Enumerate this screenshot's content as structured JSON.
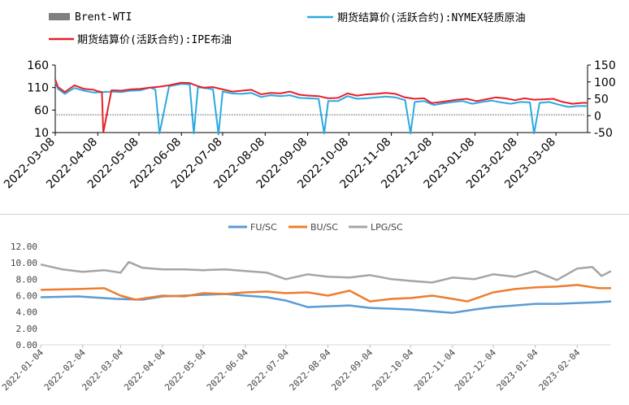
{
  "chart_data": [
    {
      "type": "line",
      "legend": [
        {
          "name": "Brent-WTI",
          "color": "#7f7f7f",
          "kind": "bar"
        },
        {
          "name": "期货结算价(活跃合约):NYMEX轻质原油",
          "color": "#2aa9e0",
          "kind": "line"
        },
        {
          "name": "期货结算价(活跃合约):IPE布油",
          "color": "#e8202a",
          "kind": "line"
        }
      ],
      "left_axis": {
        "range": [
          10,
          160
        ],
        "ticks": [
          "160",
          "110",
          "60",
          "10"
        ]
      },
      "right_axis": {
        "range": [
          -50,
          150
        ],
        "ticks": [
          "150",
          "100",
          "50",
          "0",
          "-50"
        ]
      },
      "x_labels": [
        "2022-03-08",
        "2022-04-08",
        "2022-05-08",
        "2022-06-08",
        "2022-07-08",
        "2022-08-08",
        "2022-09-08",
        "2022-10-08",
        "2022-11-08",
        "2022-12-08",
        "2023-01-08",
        "2023-02-08",
        "2023-03-08"
      ],
      "x_start": "2022-03-08",
      "x_end": "2023-03-31",
      "series": [
        {
          "name": "期货结算价(活跃合约):IPE布油",
          "color": "#e8202a",
          "x": [
            "2022-03-08",
            "2022-03-10",
            "2022-03-15",
            "2022-03-22",
            "2022-03-29",
            "2022-04-05",
            "2022-04-08",
            "2022-04-11",
            "2022-04-12",
            "2022-04-18",
            "2022-04-25",
            "2022-05-02",
            "2022-05-09",
            "2022-05-16",
            "2022-05-23",
            "2022-05-30",
            "2022-06-08",
            "2022-06-14",
            "2022-06-20",
            "2022-06-24",
            "2022-07-01",
            "2022-07-08",
            "2022-07-15",
            "2022-07-22",
            "2022-07-29",
            "2022-08-05",
            "2022-08-12",
            "2022-08-19",
            "2022-08-26",
            "2022-09-02",
            "2022-09-09",
            "2022-09-16",
            "2022-09-23",
            "2022-09-30",
            "2022-10-07",
            "2022-10-14",
            "2022-10-21",
            "2022-10-28",
            "2022-11-04",
            "2022-11-11",
            "2022-11-18",
            "2022-11-25",
            "2022-12-02",
            "2022-12-07",
            "2022-12-09",
            "2022-12-12",
            "2022-12-19",
            "2022-12-26",
            "2023-01-02",
            "2023-01-09",
            "2023-01-16",
            "2023-01-23",
            "2023-01-30",
            "2023-02-06",
            "2023-02-13",
            "2023-02-20",
            "2023-02-27",
            "2023-03-06",
            "2023-03-13",
            "2023-03-20",
            "2023-03-27",
            "2023-03-31"
          ],
          "values": [
            128,
            111,
            100,
            115,
            107,
            105,
            102,
            100,
            10,
            104,
            103,
            106,
            107,
            110,
            112,
            115,
            121,
            120,
            113,
            110,
            111,
            106,
            101,
            103,
            105,
            95,
            98,
            97,
            101,
            94,
            92,
            91,
            86,
            87,
            97,
            92,
            95,
            96,
            98,
            96,
            88,
            85,
            86,
            76,
            76,
            77,
            80,
            83,
            85,
            80,
            84,
            88,
            86,
            82,
            86,
            83,
            84,
            85,
            78,
            74,
            76,
            76
          ]
        },
        {
          "name": "期货结算价(活跃合约):NYMEX轻质原油",
          "color": "#2aa9e0",
          "x": [
            "2022-03-08",
            "2022-03-10",
            "2022-03-15",
            "2022-03-22",
            "2022-03-29",
            "2022-04-05",
            "2022-04-12",
            "2022-04-18",
            "2022-04-25",
            "2022-05-02",
            "2022-05-09",
            "2022-05-16",
            "2022-05-20",
            "2022-05-23",
            "2022-05-30",
            "2022-06-08",
            "2022-06-14",
            "2022-06-17",
            "2022-06-20",
            "2022-06-27",
            "2022-07-01",
            "2022-07-05",
            "2022-07-08",
            "2022-07-15",
            "2022-07-22",
            "2022-07-29",
            "2022-08-05",
            "2022-08-12",
            "2022-08-19",
            "2022-08-26",
            "2022-09-02",
            "2022-09-09",
            "2022-09-16",
            "2022-09-20",
            "2022-09-23",
            "2022-09-30",
            "2022-10-07",
            "2022-10-14",
            "2022-10-21",
            "2022-10-28",
            "2022-11-04",
            "2022-11-11",
            "2022-11-18",
            "2022-11-22",
            "2022-11-25",
            "2022-12-02",
            "2022-12-09",
            "2022-12-16",
            "2022-12-23",
            "2022-12-30",
            "2023-01-06",
            "2023-01-13",
            "2023-01-20",
            "2023-01-27",
            "2023-02-03",
            "2023-02-10",
            "2023-02-17",
            "2023-02-20",
            "2023-02-24",
            "2023-03-03",
            "2023-03-10",
            "2023-03-17",
            "2023-03-24",
            "2023-03-31"
          ],
          "values": [
            123,
            107,
            96,
            109,
            103,
            99,
            100,
            101,
            100,
            103,
            104,
            110,
            106,
            8,
            113,
            118,
            117,
            8,
            111,
            108,
            106,
            6,
            101,
            97,
            96,
            98,
            89,
            93,
            91,
            93,
            87,
            86,
            85,
            8,
            80,
            80,
            91,
            85,
            86,
            88,
            90,
            88,
            82,
            8,
            78,
            80,
            71,
            75,
            78,
            80,
            74,
            78,
            81,
            77,
            74,
            78,
            77,
            8,
            76,
            78,
            72,
            67,
            69,
            69
          ]
        },
        {
          "name": "Brent-WTI",
          "color": "#7f7f7f",
          "kind": "bar",
          "x": [
            "2022-03-08",
            "2023-03-31"
          ],
          "values": [
            5,
            5
          ]
        }
      ]
    },
    {
      "type": "line",
      "legend": [
        {
          "name": "FU/SC",
          "color": "#5b9bd5"
        },
        {
          "name": "BU/SC",
          "color": "#ed7d31"
        },
        {
          "name": "LPG/SC",
          "color": "#a5a5a5"
        }
      ],
      "y_axis": {
        "range": [
          0,
          12
        ],
        "ticks": [
          "0.00",
          "2.00",
          "4.00",
          "6.00",
          "8.00",
          "10.00",
          "12.00"
        ]
      },
      "x_labels": [
        "2022-01-04",
        "2022-02-04",
        "2022-03-04",
        "2022-04-04",
        "2022-05-04",
        "2022-06-04",
        "2022-07-04",
        "2022-08-04",
        "2022-09-04",
        "2022-10-04",
        "2022-11-04",
        "2022-12-04",
        "2023-01-04",
        "2023-02-04"
      ],
      "x_start": "2022-01-04",
      "x_end": "2023-03-01",
      "series": [
        {
          "name": "FU/SC",
          "color": "#5b9bd5",
          "x": [
            "2022-01-04",
            "2022-02-01",
            "2022-03-01",
            "2022-03-20",
            "2022-04-04",
            "2022-04-20",
            "2022-05-04",
            "2022-05-20",
            "2022-06-04",
            "2022-06-20",
            "2022-07-04",
            "2022-07-20",
            "2022-08-04",
            "2022-08-20",
            "2022-09-04",
            "2022-09-20",
            "2022-10-04",
            "2022-10-20",
            "2022-11-04",
            "2022-11-20",
            "2022-12-04",
            "2022-12-20",
            "2023-01-04",
            "2023-01-20",
            "2023-02-04",
            "2023-02-20",
            "2023-03-01"
          ],
          "values": [
            5.8,
            5.9,
            5.6,
            5.5,
            5.9,
            6.0,
            6.1,
            6.2,
            6.0,
            5.8,
            5.4,
            4.6,
            4.7,
            4.8,
            4.5,
            4.4,
            4.3,
            4.1,
            3.9,
            4.3,
            4.6,
            4.8,
            5.0,
            5.0,
            5.1,
            5.2,
            5.3
          ]
        },
        {
          "name": "BU/SC",
          "color": "#ed7d31",
          "x": [
            "2022-01-04",
            "2022-02-01",
            "2022-02-20",
            "2022-03-04",
            "2022-03-15",
            "2022-04-04",
            "2022-04-20",
            "2022-05-04",
            "2022-05-20",
            "2022-06-04",
            "2022-06-20",
            "2022-07-04",
            "2022-07-20",
            "2022-08-04",
            "2022-08-20",
            "2022-09-04",
            "2022-09-20",
            "2022-10-04",
            "2022-10-20",
            "2022-11-04",
            "2022-11-15",
            "2022-12-04",
            "2022-12-20",
            "2023-01-04",
            "2023-01-20",
            "2023-02-04",
            "2023-02-20",
            "2023-03-01"
          ],
          "values": [
            6.7,
            6.8,
            6.9,
            6.0,
            5.5,
            6.0,
            5.9,
            6.3,
            6.2,
            6.4,
            6.5,
            6.3,
            6.4,
            6.0,
            6.6,
            5.3,
            5.6,
            5.7,
            6.0,
            5.6,
            5.3,
            6.4,
            6.8,
            7.0,
            7.1,
            7.3,
            6.9,
            6.9
          ]
        },
        {
          "name": "LPG/SC",
          "color": "#a5a5a5",
          "x": [
            "2022-01-04",
            "2022-01-20",
            "2022-02-04",
            "2022-02-20",
            "2022-03-04",
            "2022-03-10",
            "2022-03-20",
            "2022-04-04",
            "2022-04-20",
            "2022-05-04",
            "2022-05-20",
            "2022-06-04",
            "2022-06-20",
            "2022-07-04",
            "2022-07-20",
            "2022-08-04",
            "2022-08-20",
            "2022-09-04",
            "2022-09-20",
            "2022-10-04",
            "2022-10-20",
            "2022-11-04",
            "2022-11-20",
            "2022-12-04",
            "2022-12-20",
            "2023-01-04",
            "2023-01-20",
            "2023-02-04",
            "2023-02-15",
            "2023-02-22",
            "2023-03-01"
          ],
          "values": [
            9.8,
            9.2,
            8.9,
            9.1,
            8.8,
            10.1,
            9.4,
            9.2,
            9.2,
            9.1,
            9.2,
            9.0,
            8.8,
            8.0,
            8.6,
            8.3,
            8.2,
            8.5,
            8.0,
            7.8,
            7.6,
            8.2,
            8.0,
            8.6,
            8.3,
            9.0,
            7.9,
            9.3,
            9.5,
            8.4,
            9.0
          ]
        }
      ]
    }
  ]
}
